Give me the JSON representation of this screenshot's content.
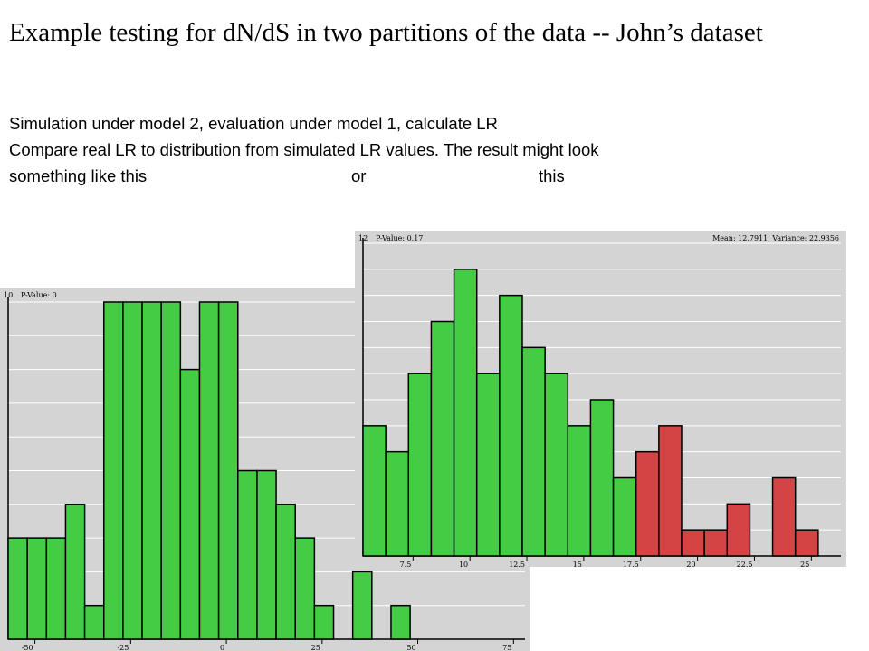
{
  "slide": {
    "title": "Example testing for dN/dS in two partitions of the data -- John’s dataset",
    "line1": "Simulation under model 2, evaluation under model 1, calculate LR",
    "line2": "Compare real LR to distribution from simulated LR values.  The result might look",
    "line3_a": "something like this",
    "line3_b": "or",
    "line3_c": "this"
  },
  "colors": {
    "background": "#d4d4d4",
    "grid": "#ffffff",
    "bar_green": "#44cc44",
    "bar_red": "#d44444",
    "outline": "#000000"
  },
  "chart_data": [
    {
      "type": "bar",
      "title": "",
      "header_left": "10",
      "p_value_label": "P-Value: 0",
      "xlabel": "",
      "ylabel": "",
      "ylim": [
        0,
        10
      ],
      "xlim": [
        -57,
        78
      ],
      "bin_width": 5,
      "grid": true,
      "x_ticks": [
        -50,
        -25,
        0,
        25,
        50,
        75
      ],
      "x_tick_labels": [
        "-50",
        "-25",
        "0",
        "25",
        "50",
        "75"
      ],
      "bins": [
        {
          "x": -57,
          "value": 3,
          "color": "green"
        },
        {
          "x": -52,
          "value": 3,
          "color": "green"
        },
        {
          "x": -47,
          "value": 3,
          "color": "green"
        },
        {
          "x": -42,
          "value": 4,
          "color": "green"
        },
        {
          "x": -37,
          "value": 1,
          "color": "green"
        },
        {
          "x": -32,
          "value": 10,
          "color": "green"
        },
        {
          "x": -27,
          "value": 10,
          "color": "green"
        },
        {
          "x": -22,
          "value": 10,
          "color": "green"
        },
        {
          "x": -17,
          "value": 10,
          "color": "green"
        },
        {
          "x": -12,
          "value": 8,
          "color": "green"
        },
        {
          "x": -7,
          "value": 10,
          "color": "green"
        },
        {
          "x": -2,
          "value": 10,
          "color": "green"
        },
        {
          "x": 3,
          "value": 5,
          "color": "green"
        },
        {
          "x": 8,
          "value": 5,
          "color": "green"
        },
        {
          "x": 13,
          "value": 4,
          "color": "green"
        },
        {
          "x": 18,
          "value": 3,
          "color": "green"
        },
        {
          "x": 23,
          "value": 1,
          "color": "green"
        },
        {
          "x": 28,
          "value": 0,
          "color": "green"
        },
        {
          "x": 33,
          "value": 2,
          "color": "green"
        },
        {
          "x": 38,
          "value": 0,
          "color": "green"
        },
        {
          "x": 43,
          "value": 1,
          "color": "green"
        }
      ]
    },
    {
      "type": "bar",
      "title": "",
      "header_left": "12",
      "p_value_label": "P-Value: 0.17",
      "stats_label": "Mean: 12.7911, Variance: 22.9356",
      "xlabel": "",
      "ylabel": "",
      "ylim": [
        0,
        12
      ],
      "xlim": [
        5.3,
        26.3
      ],
      "bin_width": 1,
      "grid": true,
      "x_ticks": [
        7.5,
        10,
        12.5,
        15,
        17.5,
        20,
        22.5,
        25
      ],
      "x_tick_labels": [
        "7.5",
        "10",
        "12.5",
        "15",
        "17.5",
        "20",
        "22.5",
        "25"
      ],
      "bins": [
        {
          "x": 5.3,
          "value": 5,
          "color": "green"
        },
        {
          "x": 6.3,
          "value": 4,
          "color": "green"
        },
        {
          "x": 7.3,
          "value": 7,
          "color": "green"
        },
        {
          "x": 8.3,
          "value": 9,
          "color": "green"
        },
        {
          "x": 9.3,
          "value": 11,
          "color": "green"
        },
        {
          "x": 10.3,
          "value": 7,
          "color": "green"
        },
        {
          "x": 11.3,
          "value": 10,
          "color": "green"
        },
        {
          "x": 12.3,
          "value": 8,
          "color": "green"
        },
        {
          "x": 13.3,
          "value": 7,
          "color": "green"
        },
        {
          "x": 14.3,
          "value": 5,
          "color": "green"
        },
        {
          "x": 15.3,
          "value": 6,
          "color": "green"
        },
        {
          "x": 16.3,
          "value": 3,
          "color": "green"
        },
        {
          "x": 17.3,
          "value": 4,
          "color": "red"
        },
        {
          "x": 18.3,
          "value": 5,
          "color": "red"
        },
        {
          "x": 19.3,
          "value": 1,
          "color": "red"
        },
        {
          "x": 20.3,
          "value": 1,
          "color": "red"
        },
        {
          "x": 21.3,
          "value": 2,
          "color": "red"
        },
        {
          "x": 22.3,
          "value": 0,
          "color": "red"
        },
        {
          "x": 23.3,
          "value": 3,
          "color": "red"
        },
        {
          "x": 24.3,
          "value": 1,
          "color": "red"
        }
      ]
    }
  ]
}
